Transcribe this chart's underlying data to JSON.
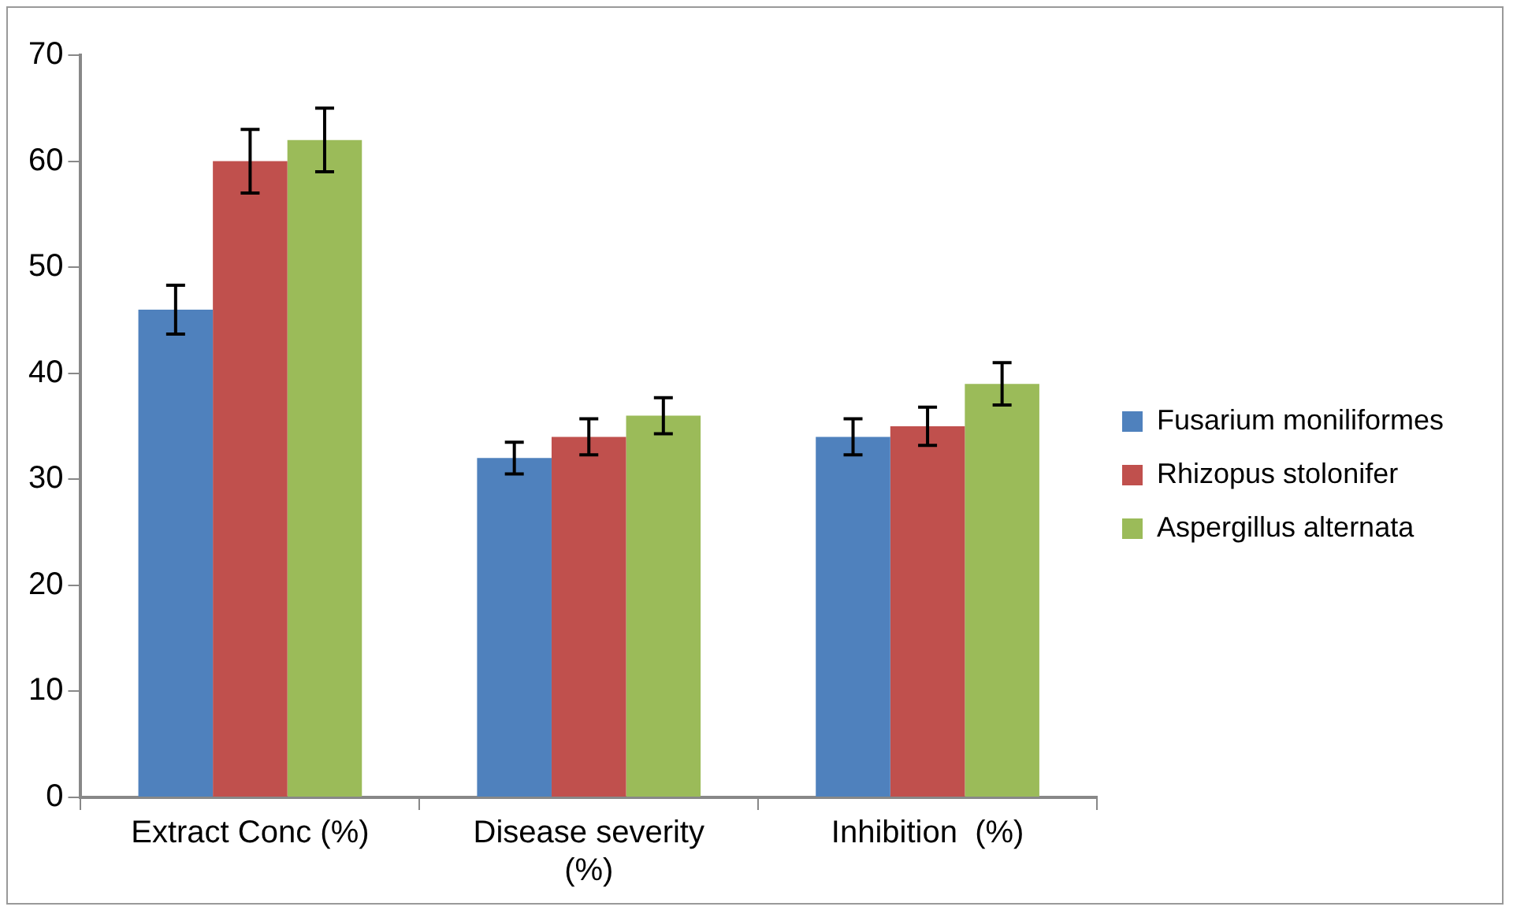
{
  "chart_data": {
    "type": "bar",
    "categories": [
      "Extract Conc (%)",
      "Disease severity (%)",
      "Inhibition  (%)"
    ],
    "series": [
      {
        "name": "Fusarium moniliformes",
        "color": "#4f81bd",
        "values": [
          46,
          32,
          34
        ],
        "errors": [
          2.3,
          1.5,
          1.7
        ]
      },
      {
        "name": "Rhizopus stolonifer",
        "color": "#c0504d",
        "values": [
          60,
          34,
          35
        ],
        "errors": [
          3,
          1.7,
          1.8
        ]
      },
      {
        "name": "Aspergillus alternata",
        "color": "#9bbb59",
        "values": [
          62,
          36,
          39
        ],
        "errors": [
          3,
          1.7,
          2
        ]
      }
    ],
    "ylim": [
      0,
      70
    ],
    "yticks": [
      0,
      10,
      20,
      30,
      40,
      50,
      60,
      70
    ],
    "grid": false,
    "legend": "right"
  }
}
